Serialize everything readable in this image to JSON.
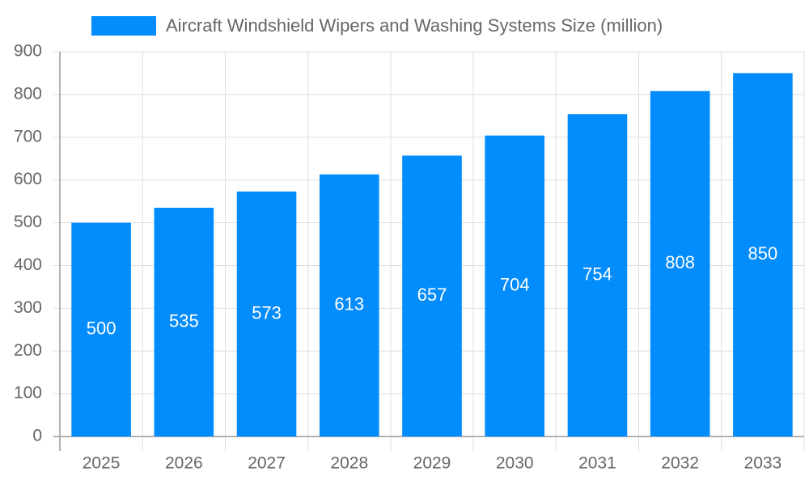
{
  "chart_data": {
    "type": "bar",
    "categories": [
      "2025",
      "2026",
      "2027",
      "2028",
      "2029",
      "2030",
      "2031",
      "2032",
      "2033"
    ],
    "series": [
      {
        "name": "Aircraft Windshield Wipers and Washing Systems Size (million)",
        "color": "#038cfc",
        "values": [
          500,
          535,
          573,
          613,
          657,
          704,
          754,
          808,
          850
        ]
      }
    ],
    "ylim": [
      0,
      900
    ],
    "yticks": [
      0,
      100,
      200,
      300,
      400,
      500,
      600,
      700,
      800,
      900
    ],
    "grid": true,
    "legend": "top"
  }
}
